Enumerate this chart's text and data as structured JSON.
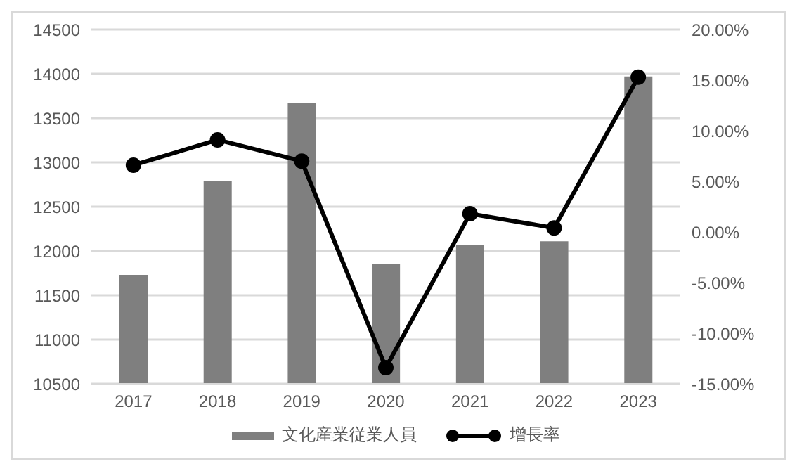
{
  "chart_data": {
    "type": "bar",
    "categories": [
      "2017",
      "2018",
      "2019",
      "2020",
      "2021",
      "2022",
      "2023"
    ],
    "series": [
      {
        "name": "文化産業従業人員",
        "color": "#7f7f7f",
        "values": [
          11730,
          12790,
          13670,
          11850,
          12070,
          12110,
          13970
        ]
      },
      {
        "name": "增長率",
        "type": "line",
        "axis": "y2",
        "color": "#000000",
        "marker": "circle",
        "values": [
          6.6,
          9.1,
          7.0,
          -13.4,
          1.8,
          0.4,
          15.3
        ]
      }
    ],
    "ylim": [
      10500,
      14500
    ],
    "yticks": [
      10500,
      11000,
      11500,
      12000,
      12500,
      13000,
      13500,
      14000,
      14500
    ],
    "y2lim": [
      -15,
      20
    ],
    "y2ticks": [
      {
        "value": -15,
        "label": "-15.00%"
      },
      {
        "value": -10,
        "label": "-10.00%"
      },
      {
        "value": -5,
        "label": "-5.00%"
      },
      {
        "value": 0,
        "label": "0.00%"
      },
      {
        "value": 5,
        "label": "5.00%"
      },
      {
        "value": 10,
        "label": "10.00%"
      },
      {
        "value": 15,
        "label": "15.00%"
      },
      {
        "value": 20,
        "label": "20.00%"
      }
    ],
    "grid": "y",
    "legend": "bottom"
  }
}
